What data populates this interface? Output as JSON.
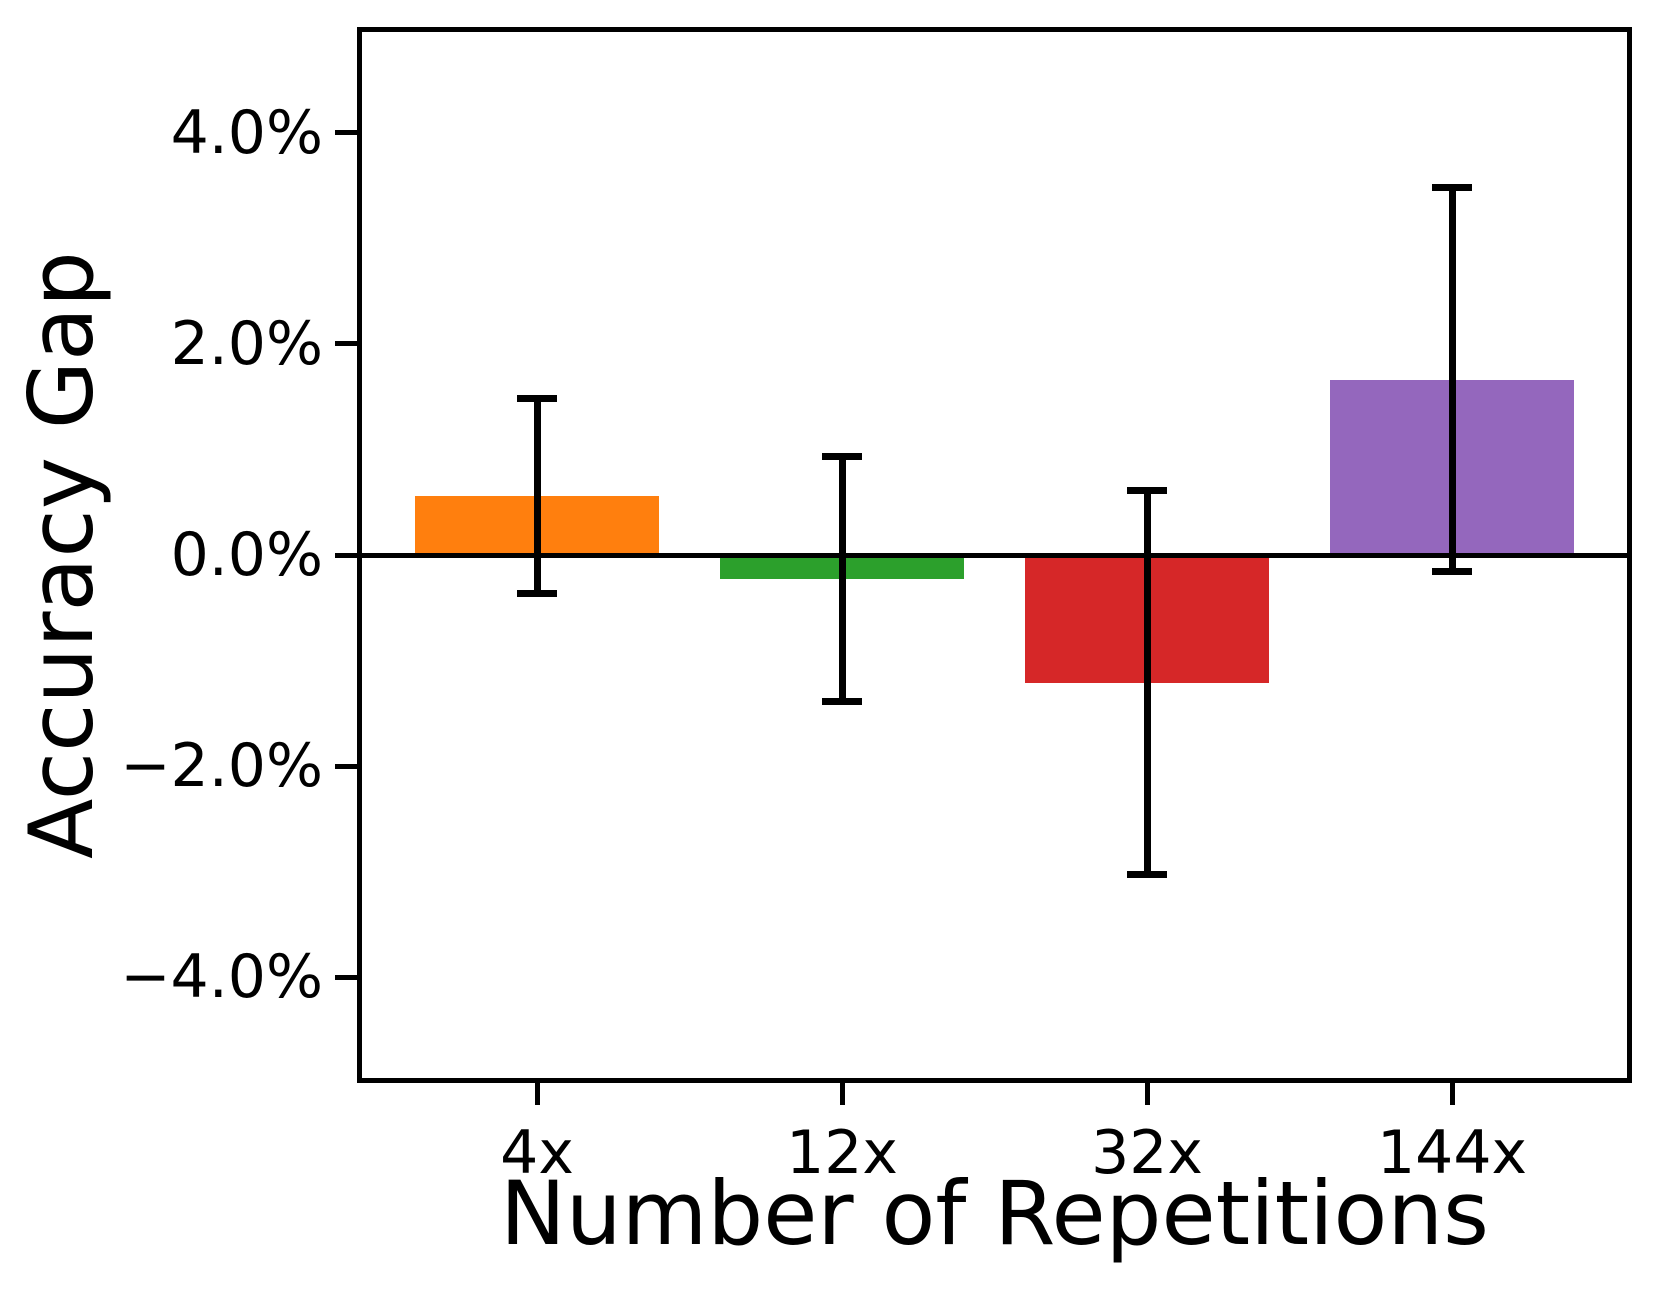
{
  "chart_data": {
    "type": "bar",
    "title": "",
    "xlabel": "Number of Repetitions",
    "ylabel": "Accuracy Gap",
    "categories": [
      "4x",
      "12x",
      "32x",
      "144x"
    ],
    "values": [
      0.56,
      -0.23,
      -1.21,
      1.66
    ],
    "error_bars": [
      0.92,
      1.16,
      1.82,
      1.82
    ],
    "bar_colors": [
      "#ff7f0e",
      "#2ca02c",
      "#d62728",
      "#9467bd"
    ],
    "value_unit": "%",
    "y_ticks": [
      {
        "value": 4,
        "label": "4.0%"
      },
      {
        "value": 2,
        "label": "2.0%"
      },
      {
        "value": 0,
        "label": "0.0%"
      },
      {
        "value": -2,
        "label": "−2.0%"
      },
      {
        "value": -4,
        "label": "−4.0%"
      }
    ],
    "ylim": [
      -5,
      5
    ],
    "grid": false,
    "legend": null,
    "zero_line": true,
    "axis_color": "#000000",
    "background_color": "#ffffff"
  }
}
